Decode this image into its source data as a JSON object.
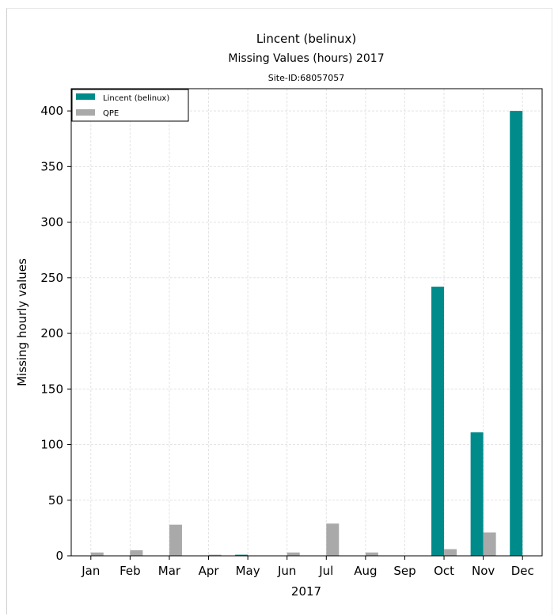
{
  "chart_data": {
    "type": "bar",
    "title": "Lincent (belinux)",
    "subtitle": "Missing Values (hours) 2017",
    "annotation": "Site-ID:68057057",
    "xlabel": "2017",
    "ylabel": "Missing hourly values",
    "categories": [
      "Jan",
      "Feb",
      "Mar",
      "Apr",
      "May",
      "Jun",
      "Jul",
      "Aug",
      "Sep",
      "Oct",
      "Nov",
      "Dec"
    ],
    "series": [
      {
        "name": "Lincent (belinux)",
        "color": "#008b8b",
        "values": [
          0,
          0,
          0,
          0,
          1,
          0,
          0,
          0,
          0,
          242,
          111,
          400
        ]
      },
      {
        "name": "QPE",
        "color": "#a9a9a9",
        "values": [
          3,
          5,
          28,
          1,
          0,
          3,
          29,
          3,
          0,
          6,
          21,
          0
        ]
      }
    ],
    "ylim": [
      0,
      420
    ],
    "yticks": [
      0,
      50,
      100,
      150,
      200,
      250,
      300,
      350,
      400
    ],
    "grid": true,
    "legend_position": "top-left"
  }
}
